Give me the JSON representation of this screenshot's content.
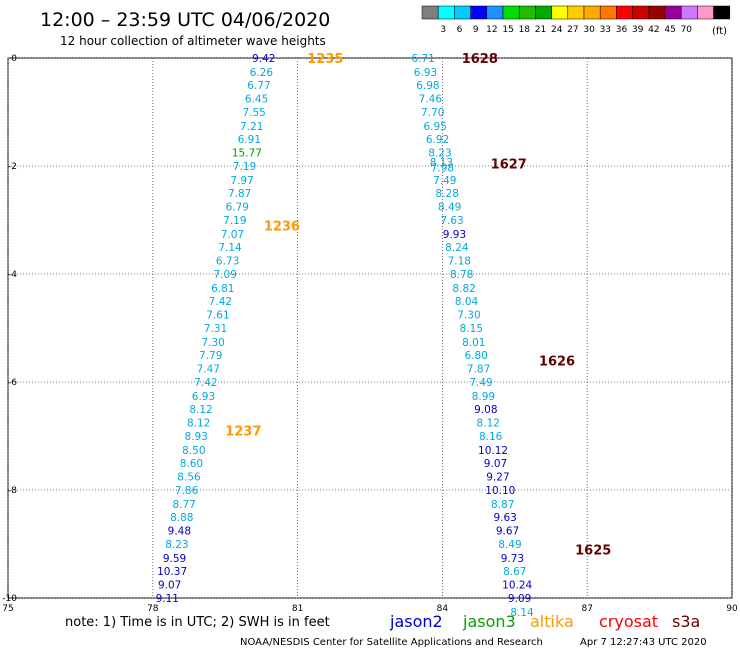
{
  "header": {
    "title": "12:00 – 23:59 UTC 04/06/2020",
    "subtitle": "12 hour collection of altimeter wave heights"
  },
  "colorbar": {
    "unit_label": "(ft)",
    "ticks": [
      "3",
      "6",
      "9",
      "12",
      "15",
      "18",
      "21",
      "24",
      "27",
      "30",
      "33",
      "36",
      "39",
      "42",
      "45",
      "70"
    ],
    "colors": [
      "#7f7f7f",
      "#00ffff",
      "#00ccff",
      "#0000ff",
      "#1e90ff",
      "#00e000",
      "#22bb00",
      "#00aa00",
      "#ffff00",
      "#ffcc00",
      "#ffaa00",
      "#ff7700",
      "#ff0000",
      "#cc0000",
      "#990000",
      "#990099",
      "#cc77ff",
      "#ff99cc",
      "#000000"
    ]
  },
  "axes": {
    "x_ticks": [
      "75",
      "78",
      "81",
      "84",
      "87",
      "90"
    ],
    "y_ticks": [
      "0",
      "-2",
      "-4",
      "-6",
      "-8",
      "-10"
    ],
    "x_range": [
      75,
      90
    ],
    "y_range": [
      0,
      -10
    ]
  },
  "colors": {
    "jason2": "#0000cc",
    "jason3": "#00a000",
    "altika": "#ff9900",
    "cryosat": "#ff0000",
    "s3a": "#660000",
    "cyan": "#00aadd",
    "green": "#00a000",
    "blue": "#0000cc"
  },
  "footer": {
    "note": "note: 1) Time is in UTC; 2) SWH is in feet",
    "credit": "NOAA/NESDIS Center for Satellite Applications and Research",
    "timestamp": "Apr  7 12:27:43 UTC 2020",
    "legend": [
      {
        "label": "jason2",
        "color": "#0000cc"
      },
      {
        "label": "jason3",
        "color": "#00a000"
      },
      {
        "label": "altika",
        "color": "#ff9900"
      },
      {
        "label": "cryosat",
        "color": "#ff0000"
      },
      {
        "label": "s3a",
        "color": "#660000"
      }
    ]
  },
  "tracks": [
    {
      "name": "altika",
      "times": [
        {
          "label": "1235",
          "lon": 81.2,
          "lat": 0.0,
          "color": "#ff9900"
        },
        {
          "label": "1236",
          "lon": 80.3,
          "lat": -3.1,
          "color": "#ff9900"
        },
        {
          "label": "1237",
          "lon": 79.5,
          "lat": -6.9,
          "color": "#ff9900"
        }
      ],
      "points": [
        {
          "v": "9.42",
          "lon": 80.3,
          "lat": 0.0,
          "c": "blue"
        },
        {
          "v": "6.26",
          "lon": 80.25,
          "lat": -0.26,
          "c": "cyan"
        },
        {
          "v": "6.77",
          "lon": 80.2,
          "lat": -0.5,
          "c": "cyan"
        },
        {
          "v": "6.45",
          "lon": 80.15,
          "lat": -0.75,
          "c": "cyan"
        },
        {
          "v": "7.55",
          "lon": 80.1,
          "lat": -1.0,
          "c": "cyan"
        },
        {
          "v": "7.21",
          "lon": 80.05,
          "lat": -1.26,
          "c": "cyan"
        },
        {
          "v": "6.91",
          "lon": 80.0,
          "lat": -1.5,
          "c": "cyan"
        },
        {
          "v": "15.77",
          "lon": 79.95,
          "lat": -1.75,
          "c": "green"
        },
        {
          "v": "7.19",
          "lon": 79.9,
          "lat": -2.0,
          "c": "cyan"
        },
        {
          "v": "7.97",
          "lon": 79.85,
          "lat": -2.26,
          "c": "cyan"
        },
        {
          "v": "7.87",
          "lon": 79.8,
          "lat": -2.5,
          "c": "cyan"
        },
        {
          "v": "6.79",
          "lon": 79.75,
          "lat": -2.75,
          "c": "cyan"
        },
        {
          "v": "7.19",
          "lon": 79.7,
          "lat": -3.0,
          "c": "cyan"
        },
        {
          "v": "7.07",
          "lon": 79.65,
          "lat": -3.26,
          "c": "cyan"
        },
        {
          "v": "7.14",
          "lon": 79.6,
          "lat": -3.5,
          "c": "cyan"
        },
        {
          "v": "6.73",
          "lon": 79.55,
          "lat": -3.75,
          "c": "cyan"
        },
        {
          "v": "7.09",
          "lon": 79.5,
          "lat": -4.0,
          "c": "cyan"
        },
        {
          "v": "6.81",
          "lon": 79.45,
          "lat": -4.26,
          "c": "cyan"
        },
        {
          "v": "7.42",
          "lon": 79.4,
          "lat": -4.5,
          "c": "cyan"
        },
        {
          "v": "7.61",
          "lon": 79.35,
          "lat": -4.75,
          "c": "cyan"
        },
        {
          "v": "7.31",
          "lon": 79.3,
          "lat": -5.0,
          "c": "cyan"
        },
        {
          "v": "7.30",
          "lon": 79.25,
          "lat": -5.26,
          "c": "cyan"
        },
        {
          "v": "7.79",
          "lon": 79.2,
          "lat": -5.5,
          "c": "cyan"
        },
        {
          "v": "7.47",
          "lon": 79.15,
          "lat": -5.75,
          "c": "cyan"
        },
        {
          "v": "7.42",
          "lon": 79.1,
          "lat": -6.0,
          "c": "cyan"
        },
        {
          "v": "6.93",
          "lon": 79.05,
          "lat": -6.26,
          "c": "cyan"
        },
        {
          "v": "8.12",
          "lon": 79.0,
          "lat": -6.5,
          "c": "cyan"
        },
        {
          "v": "8.12",
          "lon": 78.95,
          "lat": -6.75,
          "c": "cyan"
        },
        {
          "v": "8.93",
          "lon": 78.9,
          "lat": -7.0,
          "c": "cyan"
        },
        {
          "v": "8.50",
          "lon": 78.85,
          "lat": -7.26,
          "c": "cyan"
        },
        {
          "v": "8.60",
          "lon": 78.8,
          "lat": -7.5,
          "c": "cyan"
        },
        {
          "v": "8.56",
          "lon": 78.75,
          "lat": -7.75,
          "c": "cyan"
        },
        {
          "v": "7.86",
          "lon": 78.7,
          "lat": -8.0,
          "c": "cyan"
        },
        {
          "v": "8.77",
          "lon": 78.65,
          "lat": -8.26,
          "c": "cyan"
        },
        {
          "v": "8.88",
          "lon": 78.6,
          "lat": -8.5,
          "c": "cyan"
        },
        {
          "v": "9.48",
          "lon": 78.55,
          "lat": -8.75,
          "c": "blue"
        },
        {
          "v": "8.23",
          "lon": 78.5,
          "lat": -9.0,
          "c": "cyan"
        },
        {
          "v": "9.59",
          "lon": 78.45,
          "lat": -9.26,
          "c": "blue"
        },
        {
          "v": "10.37",
          "lon": 78.4,
          "lat": -9.5,
          "c": "blue"
        },
        {
          "v": "9.07",
          "lon": 78.35,
          "lat": -9.75,
          "c": "blue"
        },
        {
          "v": "9.11",
          "lon": 78.3,
          "lat": -10.0,
          "c": "blue"
        }
      ]
    },
    {
      "name": "s3a",
      "times": [
        {
          "label": "1628",
          "lon": 84.4,
          "lat": 0.0,
          "color": "#660000"
        },
        {
          "label": "1627",
          "lon": 85.0,
          "lat": -1.95,
          "color": "#660000"
        },
        {
          "label": "1626",
          "lon": 86.0,
          "lat": -5.6,
          "color": "#660000"
        },
        {
          "label": "1625",
          "lon": 86.75,
          "lat": -9.1,
          "color": "#660000"
        }
      ],
      "points": [
        {
          "v": "6.71",
          "lon": 83.6,
          "lat": 0.0,
          "c": "cyan"
        },
        {
          "v": "6.93",
          "lon": 83.65,
          "lat": -0.26,
          "c": "cyan"
        },
        {
          "v": "6.98",
          "lon": 83.7,
          "lat": -0.5,
          "c": "cyan"
        },
        {
          "v": "7.46",
          "lon": 83.75,
          "lat": -0.75,
          "c": "cyan"
        },
        {
          "v": "7.70",
          "lon": 83.8,
          "lat": -1.0,
          "c": "cyan"
        },
        {
          "v": "6.95",
          "lon": 83.85,
          "lat": -1.26,
          "c": "cyan"
        },
        {
          "v": "6.92",
          "lon": 83.9,
          "lat": -1.5,
          "c": "cyan"
        },
        {
          "v": "8.23",
          "lon": 83.95,
          "lat": -1.75,
          "c": "cyan"
        },
        {
          "v": "8.13",
          "lon": 83.98,
          "lat": -1.93,
          "c": "cyan"
        },
        {
          "v": "7.98",
          "lon": 84.0,
          "lat": -2.03,
          "c": "cyan"
        },
        {
          "v": "7.49",
          "lon": 84.05,
          "lat": -2.26,
          "c": "cyan"
        },
        {
          "v": "8.28",
          "lon": 84.1,
          "lat": -2.5,
          "c": "cyan"
        },
        {
          "v": "8.49",
          "lon": 84.15,
          "lat": -2.75,
          "c": "cyan"
        },
        {
          "v": "7.63",
          "lon": 84.2,
          "lat": -3.0,
          "c": "cyan"
        },
        {
          "v": "9.93",
          "lon": 84.25,
          "lat": -3.26,
          "c": "blue"
        },
        {
          "v": "8.24",
          "lon": 84.3,
          "lat": -3.5,
          "c": "cyan"
        },
        {
          "v": "7.18",
          "lon": 84.35,
          "lat": -3.75,
          "c": "cyan"
        },
        {
          "v": "8.78",
          "lon": 84.4,
          "lat": -4.0,
          "c": "cyan"
        },
        {
          "v": "8.82",
          "lon": 84.45,
          "lat": -4.26,
          "c": "cyan"
        },
        {
          "v": "8.04",
          "lon": 84.5,
          "lat": -4.5,
          "c": "cyan"
        },
        {
          "v": "7.30",
          "lon": 84.55,
          "lat": -4.75,
          "c": "cyan"
        },
        {
          "v": "8.15",
          "lon": 84.6,
          "lat": -5.0,
          "c": "cyan"
        },
        {
          "v": "8.01",
          "lon": 84.65,
          "lat": -5.26,
          "c": "cyan"
        },
        {
          "v": "6.80",
          "lon": 84.7,
          "lat": -5.5,
          "c": "cyan"
        },
        {
          "v": "7.87",
          "lon": 84.75,
          "lat": -5.75,
          "c": "cyan"
        },
        {
          "v": "7.49",
          "lon": 84.8,
          "lat": -6.0,
          "c": "cyan"
        },
        {
          "v": "8.99",
          "lon": 84.85,
          "lat": -6.26,
          "c": "cyan"
        },
        {
          "v": "9.08",
          "lon": 84.9,
          "lat": -6.5,
          "c": "blue"
        },
        {
          "v": "8.12",
          "lon": 84.95,
          "lat": -6.75,
          "c": "cyan"
        },
        {
          "v": "8.16",
          "lon": 85.0,
          "lat": -7.0,
          "c": "cyan"
        },
        {
          "v": "10.12",
          "lon": 85.05,
          "lat": -7.26,
          "c": "blue"
        },
        {
          "v": "9.07",
          "lon": 85.1,
          "lat": -7.5,
          "c": "blue"
        },
        {
          "v": "9.27",
          "lon": 85.15,
          "lat": -7.75,
          "c": "blue"
        },
        {
          "v": "10.10",
          "lon": 85.2,
          "lat": -8.0,
          "c": "blue"
        },
        {
          "v": "8.87",
          "lon": 85.25,
          "lat": -8.26,
          "c": "cyan"
        },
        {
          "v": "9.63",
          "lon": 85.3,
          "lat": -8.5,
          "c": "blue"
        },
        {
          "v": "9.67",
          "lon": 85.35,
          "lat": -8.75,
          "c": "blue"
        },
        {
          "v": "8.49",
          "lon": 85.4,
          "lat": -9.0,
          "c": "cyan"
        },
        {
          "v": "9.73",
          "lon": 85.45,
          "lat": -9.26,
          "c": "blue"
        },
        {
          "v": "8.67",
          "lon": 85.5,
          "lat": -9.5,
          "c": "cyan"
        },
        {
          "v": "10.24",
          "lon": 85.55,
          "lat": -9.75,
          "c": "blue"
        },
        {
          "v": "9.09",
          "lon": 85.6,
          "lat": -10.0,
          "c": "blue"
        },
        {
          "v": "8.14",
          "lon": 85.65,
          "lat": -10.26,
          "c": "cyan"
        }
      ]
    }
  ]
}
